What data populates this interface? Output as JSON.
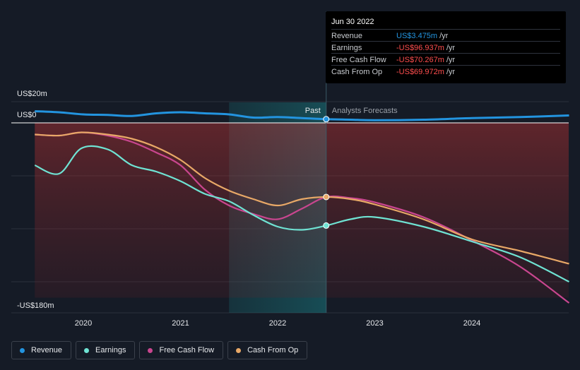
{
  "tooltip": {
    "date": "Jun 30 2022",
    "rows": [
      {
        "label": "Revenue",
        "value": "US$3.475m",
        "unit": "/yr",
        "color": "#2394df"
      },
      {
        "label": "Earnings",
        "value": "-US$96.937m",
        "unit": "/yr",
        "color": "#ff4e4e"
      },
      {
        "label": "Free Cash Flow",
        "value": "-US$70.267m",
        "unit": "/yr",
        "color": "#ff4e4e"
      },
      {
        "label": "Cash From Op",
        "value": "-US$69.972m",
        "unit": "/yr",
        "color": "#ff4e4e"
      }
    ]
  },
  "legend": [
    {
      "label": "Revenue",
      "color": "#2394df"
    },
    {
      "label": "Earnings",
      "color": "#6fe3d3"
    },
    {
      "label": "Free Cash Flow",
      "color": "#c9468f"
    },
    {
      "label": "Cash From Op",
      "color": "#e8a867"
    }
  ],
  "chart_data": {
    "type": "line",
    "y_top_label": "US$20m",
    "y_zero_label": "US$0",
    "y_bottom_label": "-US$180m",
    "ylim": [
      -180,
      20
    ],
    "xlim": [
      2019.5,
      2025.0
    ],
    "x_ticks": [
      2020,
      2021,
      2022,
      2023,
      2024
    ],
    "x_tick_labels": [
      "2020",
      "2021",
      "2022",
      "2023",
      "2024"
    ],
    "past_label": "Past",
    "forecast_label": "Analysts Forecasts",
    "highlight_start": 2021.5,
    "divider_x": 2022.5,
    "grid": true,
    "series": [
      {
        "name": "Revenue",
        "color": "#2394df",
        "points": [
          [
            2019.5,
            11
          ],
          [
            2019.75,
            10
          ],
          [
            2020.0,
            8
          ],
          [
            2020.25,
            7.5
          ],
          [
            2020.5,
            6.5
          ],
          [
            2020.75,
            9
          ],
          [
            2021.0,
            10
          ],
          [
            2021.25,
            9
          ],
          [
            2021.5,
            8
          ],
          [
            2021.75,
            5
          ],
          [
            2022.0,
            5.5
          ],
          [
            2022.25,
            4.5
          ],
          [
            2022.5,
            3.5
          ],
          [
            2022.75,
            3
          ],
          [
            2023.0,
            2.5
          ],
          [
            2023.5,
            3
          ],
          [
            2024.0,
            4.5
          ],
          [
            2024.5,
            5.5
          ],
          [
            2025.0,
            7
          ]
        ]
      },
      {
        "name": "Earnings",
        "color": "#6fe3d3",
        "points": [
          [
            2019.5,
            -40
          ],
          [
            2019.75,
            -48
          ],
          [
            2019.98,
            -24
          ],
          [
            2020.25,
            -25
          ],
          [
            2020.5,
            -40
          ],
          [
            2020.75,
            -46
          ],
          [
            2021.0,
            -55
          ],
          [
            2021.25,
            -67
          ],
          [
            2021.5,
            -74
          ],
          [
            2021.75,
            -87
          ],
          [
            2022.0,
            -98
          ],
          [
            2022.25,
            -101
          ],
          [
            2022.5,
            -97
          ],
          [
            2022.75,
            -91
          ],
          [
            2023.0,
            -89
          ],
          [
            2023.5,
            -98
          ],
          [
            2024.0,
            -112
          ],
          [
            2024.5,
            -127
          ],
          [
            2025.0,
            -150
          ]
        ]
      },
      {
        "name": "Free Cash Flow",
        "color": "#c9468f",
        "points": [
          [
            2019.5,
            -11
          ],
          [
            2019.75,
            -12
          ],
          [
            2019.98,
            -9
          ],
          [
            2020.25,
            -12
          ],
          [
            2020.5,
            -18
          ],
          [
            2020.75,
            -28
          ],
          [
            2021.0,
            -40
          ],
          [
            2021.25,
            -63
          ],
          [
            2021.5,
            -78
          ],
          [
            2021.75,
            -86
          ],
          [
            2022.0,
            -91
          ],
          [
            2022.25,
            -81
          ],
          [
            2022.5,
            -70
          ],
          [
            2022.75,
            -71
          ],
          [
            2023.0,
            -75
          ],
          [
            2023.5,
            -89
          ],
          [
            2024.0,
            -111
          ],
          [
            2024.5,
            -136
          ],
          [
            2025.0,
            -170
          ]
        ]
      },
      {
        "name": "Cash From Op",
        "color": "#e8a867",
        "points": [
          [
            2019.5,
            -11
          ],
          [
            2019.75,
            -12
          ],
          [
            2019.98,
            -9
          ],
          [
            2020.25,
            -11
          ],
          [
            2020.5,
            -15
          ],
          [
            2020.75,
            -23
          ],
          [
            2021.0,
            -35
          ],
          [
            2021.25,
            -52
          ],
          [
            2021.5,
            -64
          ],
          [
            2021.75,
            -72
          ],
          [
            2022.0,
            -78
          ],
          [
            2022.25,
            -72
          ],
          [
            2022.5,
            -70
          ],
          [
            2022.75,
            -72
          ],
          [
            2023.0,
            -77
          ],
          [
            2023.5,
            -91
          ],
          [
            2024.0,
            -110
          ],
          [
            2024.5,
            -121
          ],
          [
            2025.0,
            -133
          ]
        ]
      }
    ],
    "highlight_x": 2022.5,
    "highlight_points": [
      {
        "series": "Revenue",
        "y": 3.475
      },
      {
        "series": "Earnings",
        "y": -96.937
      },
      {
        "series": "Cash From Op",
        "y": -69.972
      }
    ]
  }
}
